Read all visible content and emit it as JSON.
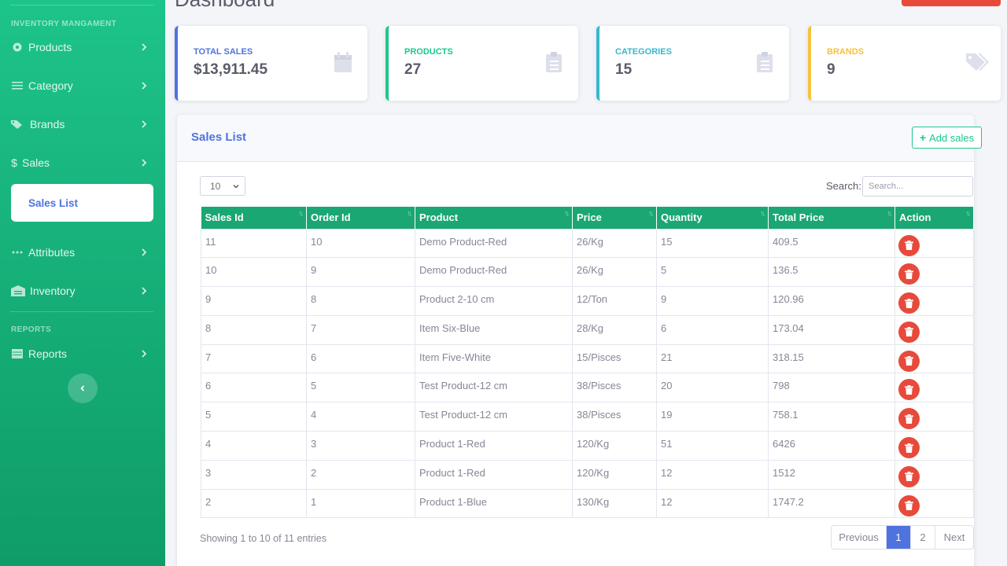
{
  "page": {
    "title": "Dashboard"
  },
  "sidebar": {
    "heading_inventory": "INVENTORY MANGAMENT",
    "heading_reports": "REPORTS",
    "items": {
      "products": "Products",
      "category": "Category",
      "brands": "Brands",
      "sales": "Sales",
      "sales_list": "Sales List",
      "attributes": "Attributes",
      "inventory": "Inventory",
      "reports": "Reports"
    }
  },
  "cards": [
    {
      "label": "TOTAL SALES",
      "value": "$13,911.45",
      "color": "#4e73df",
      "icon": "calendar-icon"
    },
    {
      "label": "PRODUCTS",
      "value": "27",
      "color": "#1cc88a",
      "icon": "clipboard-icon"
    },
    {
      "label": "CATEGORIES",
      "value": "15",
      "color": "#36b9cc",
      "icon": "clipboard-icon"
    },
    {
      "label": "BRANDS",
      "value": "9",
      "color": "#f6c23e",
      "icon": "tags-icon"
    }
  ],
  "sales_list": {
    "title": "Sales List",
    "add_button": "Add sales",
    "length_value": "10",
    "search_label": "Search:",
    "search_placeholder": "Search...",
    "columns": [
      "Sales Id",
      "Order Id",
      "Product",
      "Price",
      "Quantity",
      "Total Price",
      "Action"
    ],
    "rows": [
      [
        "11",
        "10",
        "Demo Product-Red",
        "26/Kg",
        "15",
        "409.5"
      ],
      [
        "10",
        "9",
        "Demo Product-Red",
        "26/Kg",
        "5",
        "136.5"
      ],
      [
        "9",
        "8",
        "Product 2-10 cm",
        "12/Ton",
        "9",
        "120.96"
      ],
      [
        "8",
        "7",
        "Item Six-Blue",
        "28/Kg",
        "6",
        "173.04"
      ],
      [
        "7",
        "6",
        "Item Five-White",
        "15/Pisces",
        "21",
        "318.15"
      ],
      [
        "6",
        "5",
        "Test Product-12 cm",
        "38/Pisces",
        "20",
        "798"
      ],
      [
        "5",
        "4",
        "Test Product-12 cm",
        "38/Pisces",
        "19",
        "758.1"
      ],
      [
        "4",
        "3",
        "Product 1-Red",
        "120/Kg",
        "51",
        "6426"
      ],
      [
        "3",
        "2",
        "Product 1-Red",
        "120/Kg",
        "12",
        "1512"
      ],
      [
        "2",
        "1",
        "Product 1-Blue",
        "130/Kg",
        "12",
        "1747.2"
      ]
    ],
    "info": "Showing 1 to 10 of 11 entries",
    "pagination": {
      "previous": "Previous",
      "pages": [
        "1",
        "2"
      ],
      "active": "1",
      "next": "Next"
    }
  },
  "colors": {
    "accent": "#4e73df",
    "success": "#1cc88a",
    "danger": "#e74a3b",
    "table_header": "#1aa773"
  }
}
